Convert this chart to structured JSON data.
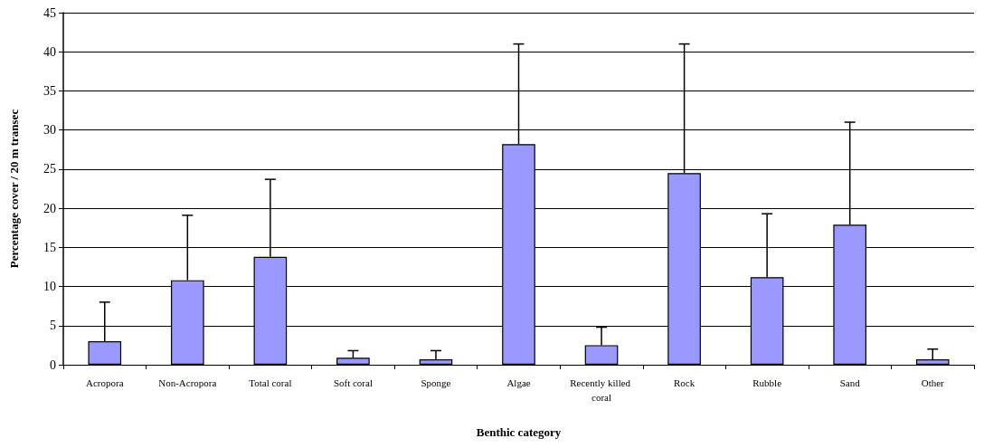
{
  "chart_data": {
    "type": "bar",
    "xlabel": "Benthic category",
    "ylabel": "Percentage cover / 20 m transec",
    "categories": [
      "Acropora",
      "Non-Acropora",
      "Total coral",
      "Soft coral",
      "Sponge",
      "Algae",
      "Recently killed coral",
      "Rock",
      "Rubble",
      "Sand",
      "Other"
    ],
    "values": [
      3.0,
      10.8,
      13.8,
      0.9,
      0.7,
      28.2,
      2.5,
      24.5,
      11.2,
      17.9,
      0.7
    ],
    "errors": [
      [
        3.0,
        8.0
      ],
      [
        10.8,
        19.1
      ],
      [
        13.8,
        23.7
      ],
      [
        0.9,
        1.8
      ],
      [
        0.7,
        1.8
      ],
      [
        28.2,
        41.0
      ],
      [
        2.5,
        4.8
      ],
      [
        24.5,
        41.0
      ],
      [
        11.2,
        19.3
      ],
      [
        17.9,
        31.0
      ],
      [
        0.7,
        2.0
      ]
    ],
    "color": "#9999ff",
    "ylim": [
      0,
      45
    ],
    "yticks": [
      0,
      5,
      10,
      15,
      20,
      25,
      30,
      35,
      40,
      45
    ],
    "grid": "y"
  }
}
